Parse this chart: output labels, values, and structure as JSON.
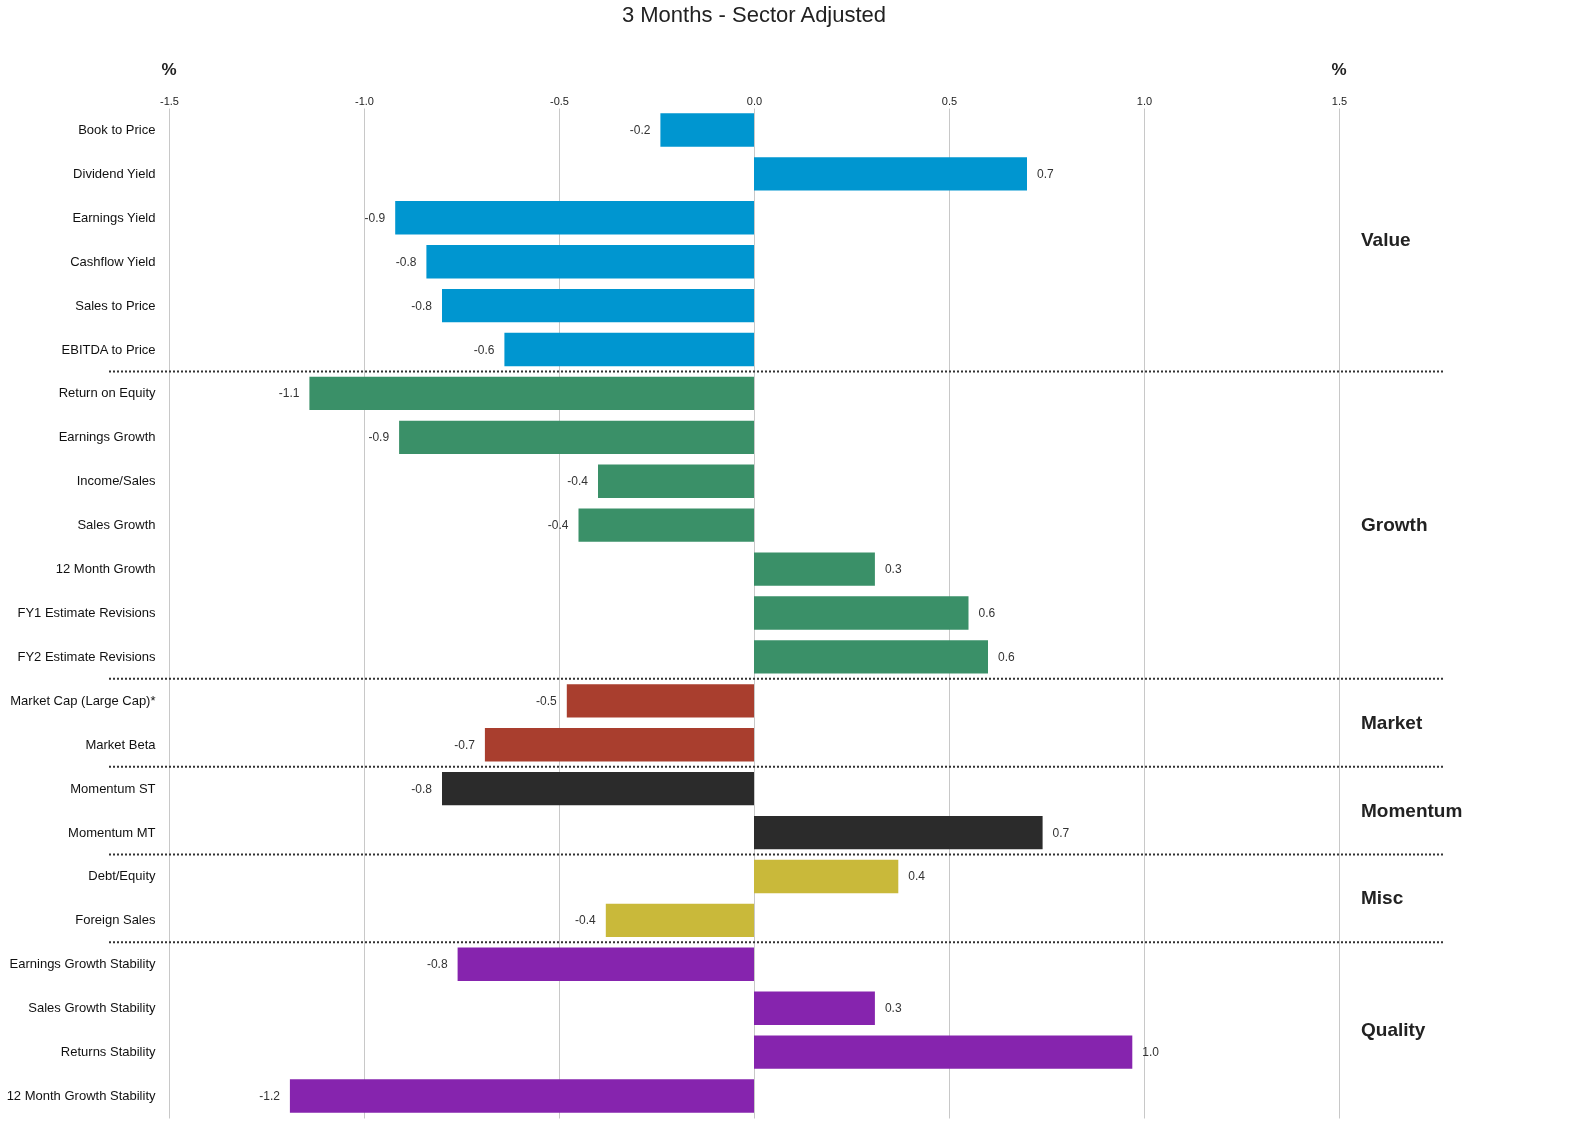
{
  "chart_data": {
    "type": "bar",
    "orientation": "horizontal",
    "title": "3  Months - Sector Adjusted",
    "xlabel": "%",
    "categories": [
      "Book to Price",
      "Dividend Yield",
      "Earnings Yield",
      "Cashflow Yield",
      "Sales to Price",
      "EBITDA to Price",
      "Return on Equity",
      "Earnings Growth",
      "Income/Sales",
      "Sales Growth",
      "12 Month Growth",
      "FY1 Estimate Revisions",
      "FY2 Estimate Revisions",
      "Market Cap (Large Cap)*",
      "Market Beta",
      "Momentum ST",
      "Momentum MT",
      "Debt/Equity",
      "Foreign Sales",
      "Earnings Growth Stability",
      "Sales Growth Stability",
      "Returns Stability",
      "12 Month Growth Stability"
    ],
    "series": [
      {
        "name": "Value",
        "color": "#0096d0",
        "values": [
          -0.24,
          0.7,
          -0.92,
          -0.84,
          -0.8,
          -0.64,
          null,
          null,
          null,
          null,
          null,
          null,
          null,
          null,
          null,
          null,
          null,
          null,
          null,
          null,
          null,
          null,
          null
        ],
        "value_labels": [
          "-0.2",
          "0.7",
          "-0.9",
          "-0.8",
          "-0.8",
          "-0.6",
          null,
          null,
          null,
          null,
          null,
          null,
          null,
          null,
          null,
          null,
          null,
          null,
          null,
          null,
          null,
          null,
          null
        ]
      },
      {
        "name": "Growth",
        "color": "#3a9068",
        "values": [
          null,
          null,
          null,
          null,
          null,
          null,
          -1.14,
          -0.91,
          -0.4,
          -0.45,
          0.31,
          0.55,
          0.6,
          null,
          null,
          null,
          null,
          null,
          null,
          null,
          null,
          null,
          null
        ],
        "value_labels": [
          null,
          null,
          null,
          null,
          null,
          null,
          "-1.1",
          "-0.9",
          "-0.4",
          "-0.4",
          "0.3",
          "0.6",
          "0.6",
          null,
          null,
          null,
          null,
          null,
          null,
          null,
          null,
          null,
          null
        ]
      },
      {
        "name": "Market",
        "color": "#a93e2e",
        "values": [
          null,
          null,
          null,
          null,
          null,
          null,
          null,
          null,
          null,
          null,
          null,
          null,
          null,
          -0.48,
          -0.69,
          null,
          null,
          null,
          null,
          null,
          null,
          null,
          null
        ],
        "value_labels": [
          null,
          null,
          null,
          null,
          null,
          null,
          null,
          null,
          null,
          null,
          null,
          null,
          null,
          "-0.5",
          "-0.7",
          null,
          null,
          null,
          null,
          null,
          null,
          null,
          null
        ]
      },
      {
        "name": "Momentum",
        "color": "#2b2b2b",
        "values": [
          null,
          null,
          null,
          null,
          null,
          null,
          null,
          null,
          null,
          null,
          null,
          null,
          null,
          null,
          null,
          -0.8,
          0.74,
          null,
          null,
          null,
          null,
          null,
          null
        ],
        "value_labels": [
          null,
          null,
          null,
          null,
          null,
          null,
          null,
          null,
          null,
          null,
          null,
          null,
          null,
          null,
          null,
          "-0.8",
          "0.7",
          null,
          null,
          null,
          null,
          null,
          null
        ]
      },
      {
        "name": "Misc",
        "color": "#c9b93a",
        "values": [
          null,
          null,
          null,
          null,
          null,
          null,
          null,
          null,
          null,
          null,
          null,
          null,
          null,
          null,
          null,
          null,
          null,
          0.37,
          -0.38,
          null,
          null,
          null,
          null
        ],
        "value_labels": [
          null,
          null,
          null,
          null,
          null,
          null,
          null,
          null,
          null,
          null,
          null,
          null,
          null,
          null,
          null,
          null,
          null,
          "0.4",
          "-0.4",
          null,
          null,
          null,
          null
        ]
      },
      {
        "name": "Quality",
        "color": "#8624ae",
        "values": [
          null,
          null,
          null,
          null,
          null,
          null,
          null,
          null,
          null,
          null,
          null,
          null,
          null,
          null,
          null,
          null,
          null,
          null,
          null,
          -0.76,
          0.31,
          0.97,
          -1.19
        ],
        "value_labels": [
          null,
          null,
          null,
          null,
          null,
          null,
          null,
          null,
          null,
          null,
          null,
          null,
          null,
          null,
          null,
          null,
          null,
          null,
          null,
          "-0.8",
          "0.3",
          "1.0",
          "-1.2"
        ]
      }
    ],
    "xlim": [
      -1.5,
      1.5
    ],
    "xticks": [
      {
        "value": -1.5,
        "label": "-1.5"
      },
      {
        "value": -1,
        "label": "-1.0"
      },
      {
        "value": -0.5,
        "label": "-0.5"
      },
      {
        "value": 0,
        "label": "0.0"
      },
      {
        "value": 0.5,
        "label": "0.5"
      },
      {
        "value": 1,
        "label": "1.0"
      },
      {
        "value": 1.5,
        "label": "1.5"
      }
    ],
    "grid": "x",
    "legend": false
  }
}
